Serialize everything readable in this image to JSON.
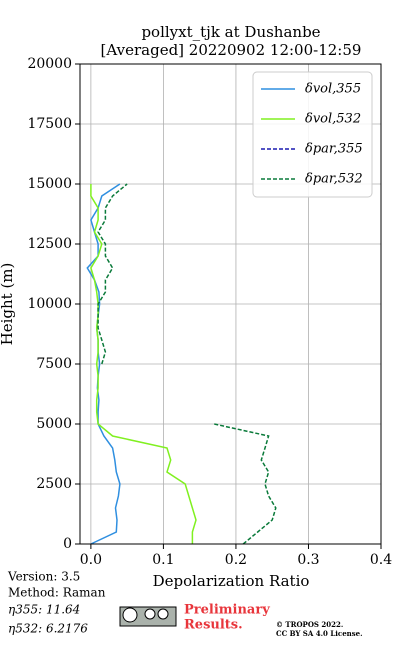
{
  "chart_data": {
    "type": "line",
    "title": "pollyxt_tjk at Dushanbe",
    "subtitle": "[Averaged] 20220902 12:00-12:59",
    "x_label": "Depolarization Ratio",
    "y_label": "Height (m)",
    "xlim": [
      -0.015,
      0.4
    ],
    "xticks": [
      {
        "value": 0,
        "label": "0.0"
      },
      0.1,
      0.2,
      0.3,
      0.4
    ],
    "ylim": [
      0,
      20000
    ],
    "yticks": [
      0,
      2500,
      5000,
      7500,
      10000,
      12500,
      15000,
      17500,
      20000
    ],
    "grid": true,
    "legend": "upper right",
    "y": [
      0,
      500,
      1000,
      1500,
      2000,
      2500,
      3000,
      3500,
      4000,
      4500,
      5000,
      5500,
      6000,
      6500,
      7000,
      7500,
      8000,
      8500,
      9000,
      9500,
      10000,
      10500,
      11000,
      11500,
      12000,
      12500,
      13000,
      13500,
      14000,
      14500,
      15000
    ],
    "series": [
      {
        "name": "δvol,355",
        "color": "#2f8fe0",
        "dash": false,
        "values": [
          0.0,
          0.035,
          0.036,
          0.034,
          0.038,
          0.04,
          0.035,
          0.033,
          0.03,
          0.018,
          0.01,
          0.01,
          0.011,
          0.009,
          0.01,
          0.012,
          0.01,
          0.01,
          0.008,
          0.01,
          0.012,
          0.011,
          0.005,
          -0.005,
          0.01,
          0.01,
          0.005,
          0.0,
          0.01,
          0.015,
          0.04
        ]
      },
      {
        "name": "δvol,532",
        "color": "#80f020",
        "dash": false,
        "values": [
          0.14,
          0.14,
          0.145,
          0.14,
          0.135,
          0.13,
          0.105,
          0.11,
          0.105,
          0.03,
          0.01,
          0.008,
          0.008,
          0.01,
          0.01,
          0.008,
          0.01,
          0.01,
          0.008,
          0.01,
          0.01,
          0.008,
          0.005,
          0.0,
          0.01,
          0.015,
          0.005,
          0.01,
          0.01,
          0.0,
          0.0
        ]
      },
      {
        "name": "δpar,355",
        "color": "#1a1ab0",
        "dash": true,
        "values": [
          null,
          null,
          null,
          null,
          null,
          null,
          null,
          null,
          null,
          null,
          null,
          null,
          null,
          null,
          null,
          null,
          null,
          null,
          null,
          null,
          null,
          null,
          null,
          null,
          null,
          null,
          null,
          null,
          null,
          null,
          null
        ]
      },
      {
        "name": "δpar,532",
        "color": "#0a7a3a",
        "dash": true,
        "values": [
          0.21,
          0.23,
          0.25,
          0.255,
          0.245,
          0.24,
          0.245,
          0.235,
          0.24,
          0.245,
          0.17,
          null,
          null,
          0.015,
          null,
          0.015,
          0.02,
          0.015,
          0.01,
          0.01,
          0.01,
          0.02,
          0.02,
          0.03,
          0.02,
          0.02,
          0.01,
          0.02,
          0.02,
          0.03,
          0.05
        ]
      }
    ]
  },
  "footer": {
    "version": "Version: 3.5",
    "method": "Method: Raman",
    "eta355": "η355:  11.64",
    "eta532": "η532: 6.2176",
    "preliminary": "Preliminary",
    "results": "Results.",
    "copyright": "© TROPOS 2022.",
    "license": "CC BY SA 4.0 License."
  }
}
